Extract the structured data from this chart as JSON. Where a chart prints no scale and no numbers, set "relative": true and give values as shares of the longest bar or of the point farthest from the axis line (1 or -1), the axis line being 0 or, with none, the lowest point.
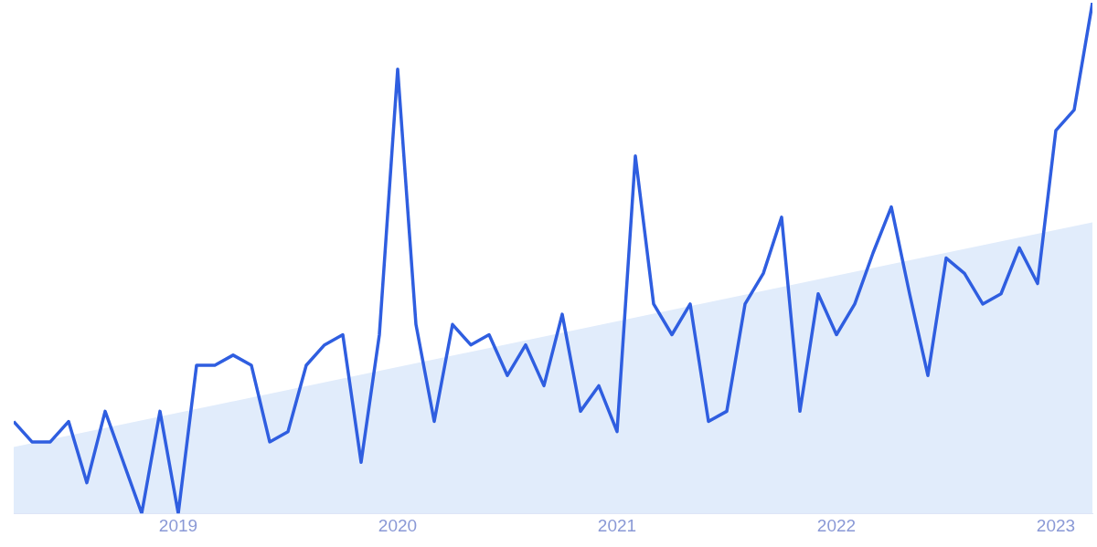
{
  "chart_data": {
    "type": "line",
    "relative": true,
    "xlim": [
      "2018-04",
      "2023-03"
    ],
    "xticks": [
      "2019",
      "2020",
      "2021",
      "2022",
      "2023"
    ],
    "series": [
      {
        "color": "#2f5ee0",
        "x": [
          "2018-04",
          "2018-05",
          "2018-06",
          "2018-07",
          "2018-08",
          "2018-09",
          "2018-10",
          "2018-11",
          "2018-12",
          "2019-01",
          "2019-02",
          "2019-03",
          "2019-04",
          "2019-05",
          "2019-06",
          "2019-07",
          "2019-08",
          "2019-09",
          "2019-10",
          "2019-11",
          "2019-12",
          "2020-01",
          "2020-02",
          "2020-03",
          "2020-04",
          "2020-05",
          "2020-06",
          "2020-07",
          "2020-08",
          "2020-09",
          "2020-10",
          "2020-11",
          "2020-12",
          "2021-01",
          "2021-02",
          "2021-03",
          "2021-04",
          "2021-05",
          "2021-06",
          "2021-07",
          "2021-08",
          "2021-09",
          "2021-10",
          "2021-11",
          "2021-12",
          "2022-01",
          "2022-02",
          "2022-03",
          "2022-04",
          "2022-05",
          "2022-06",
          "2022-07",
          "2022-08",
          "2022-09",
          "2022-10",
          "2022-11",
          "2022-12",
          "2023-01",
          "2023-02",
          "2023-03"
        ],
        "values": [
          0.18,
          0.14,
          0.14,
          0.18,
          0.06,
          0.2,
          0.1,
          0,
          0.2,
          0,
          0.29,
          0.29,
          0.31,
          0.29,
          0.14,
          0.16,
          0.29,
          0.33,
          0.35,
          0.1,
          0.35,
          0.87,
          0.37,
          0.18,
          0.37,
          0.33,
          0.35,
          0.27,
          0.33,
          0.25,
          0.39,
          0.2,
          0.25,
          0.16,
          0.7,
          0.41,
          0.35,
          0.41,
          0.18,
          0.2,
          0.41,
          0.47,
          0.58,
          0.2,
          0.43,
          0.35,
          0.41,
          0.51,
          0.6,
          0.43,
          0.27,
          0.5,
          0.47,
          0.41,
          0.43,
          0.52,
          0.45,
          0.75,
          0.79,
          1
        ]
      },
      {
        "type": "area",
        "color": "#e1ecfb",
        "x": [
          "2018-04",
          "2023-03"
        ],
        "values": [
          0.13,
          0.57
        ]
      }
    ]
  }
}
